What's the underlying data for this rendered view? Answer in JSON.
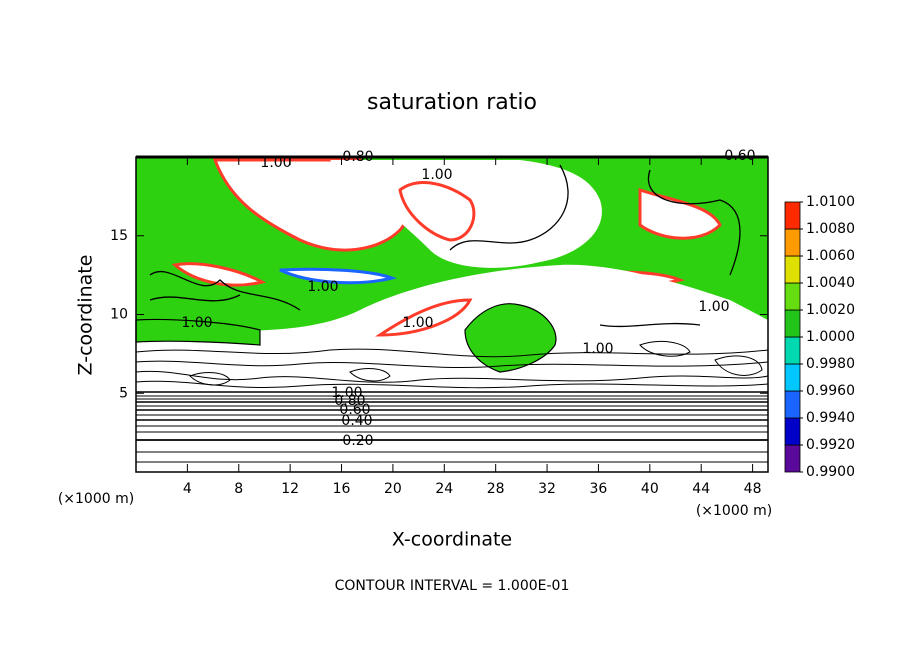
{
  "chart_data": {
    "type": "contour",
    "title": "saturation ratio",
    "x_label": "X-coordinate",
    "y_label": "Z-coordinate",
    "x_unit_left": "(×1000 m)",
    "x_unit_right": "(×1000 m)",
    "footer": "CONTOUR INTERVAL = 1.000E-01",
    "xlim": [
      0,
      49.2
    ],
    "xticks": [
      4,
      8,
      12,
      16,
      20,
      24,
      28,
      32,
      36,
      40,
      44,
      48
    ],
    "ylim": [
      0,
      20
    ],
    "yticks": [
      5,
      10,
      15
    ],
    "colorbar": {
      "levels": [
        {
          "value": 0.99,
          "label": "0.9900"
        },
        {
          "value": 0.992,
          "label": "0.9920"
        },
        {
          "value": 0.994,
          "label": "0.9940"
        },
        {
          "value": 0.996,
          "label": "0.9960"
        },
        {
          "value": 0.998,
          "label": "0.9980"
        },
        {
          "value": 1.0,
          "label": "1.0000"
        },
        {
          "value": 1.002,
          "label": "1.0020"
        },
        {
          "value": 1.004,
          "label": "1.0040"
        },
        {
          "value": 1.006,
          "label": "1.0060"
        },
        {
          "value": 1.008,
          "label": "1.0080"
        },
        {
          "value": 1.01,
          "label": "1.0100"
        }
      ],
      "colors": [
        "#5a0a9a",
        "#0000c8",
        "#1a64ff",
        "#00c8ff",
        "#00d8b0",
        "#22c41a",
        "#66dd11",
        "#e0e000",
        "#ff9a00",
        "#ff2a00"
      ]
    },
    "contour_labels": [
      {
        "value": 1.0,
        "label": "1.00"
      },
      {
        "value": 0.8,
        "label": "0.80"
      },
      {
        "value": 0.6,
        "label": "0.60"
      },
      {
        "value": 1.0,
        "label": "1.00"
      },
      {
        "value": 1.0,
        "label": "1.00"
      },
      {
        "value": 1.0,
        "label": "1.00"
      },
      {
        "value": 1.0,
        "label": "1.00"
      },
      {
        "value": 1.0,
        "label": "1.00"
      },
      {
        "value": 1.0,
        "label": "1.00"
      },
      {
        "value": 1.0,
        "label": "1.00"
      },
      {
        "value": 0.8,
        "label": "0.80"
      },
      {
        "value": 0.6,
        "label": "0.60"
      },
      {
        "value": 0.4,
        "label": "0.40"
      },
      {
        "value": 0.2,
        "label": "0.20"
      }
    ]
  }
}
